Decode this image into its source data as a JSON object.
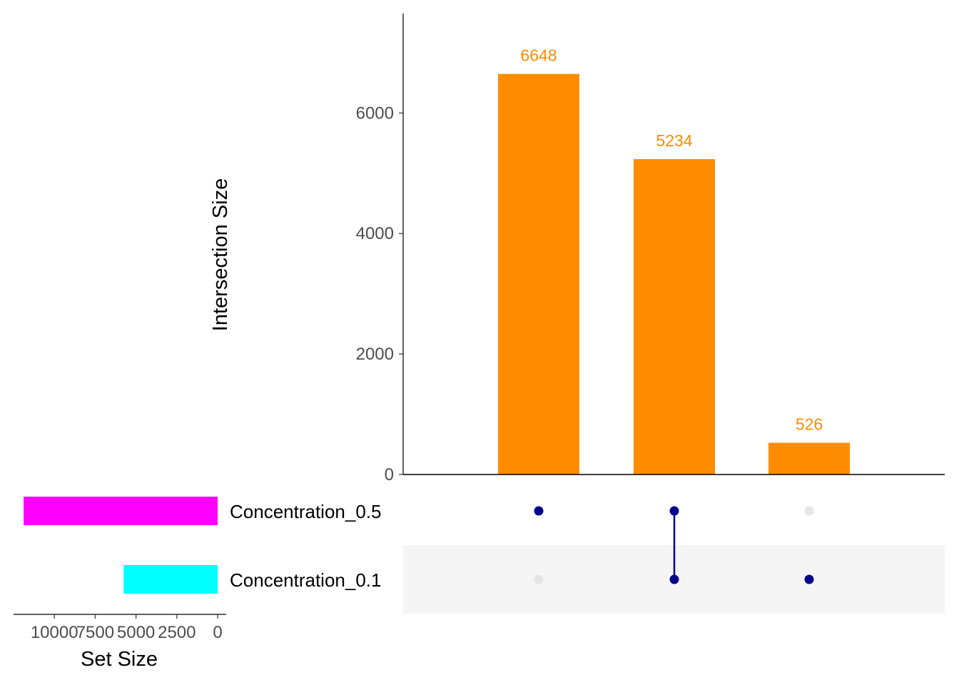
{
  "chart_data": {
    "type": "upset",
    "intersections": {
      "ylabel": "Intersection Size",
      "ylim": [
        0,
        7650
      ],
      "yticks": [
        0,
        2000,
        4000,
        6000
      ],
      "bar_color": "#FF8C00",
      "bars": [
        {
          "sets": [
            "Concentration_0.5"
          ],
          "value": 6648,
          "label": "6648"
        },
        {
          "sets": [
            "Concentration_0.5",
            "Concentration_0.1"
          ],
          "value": 5234,
          "label": "5234"
        },
        {
          "sets": [
            "Concentration_0.1"
          ],
          "value": 526,
          "label": "526"
        }
      ]
    },
    "sets": {
      "xlabel": "Set Size",
      "xlim": [
        12500,
        0
      ],
      "xticks": [
        {
          "value": 10000,
          "label": "10000"
        },
        {
          "value": 7500,
          "label": "7500"
        },
        {
          "value": 5000,
          "label": "5000"
        },
        {
          "value": 2500,
          "label": "2500"
        },
        {
          "value": 0,
          "label": "0"
        }
      ],
      "items": [
        {
          "name": "Concentration_0.5",
          "size": 11882,
          "color": "#FF00FF"
        },
        {
          "name": "Concentration_0.1",
          "size": 5760,
          "color": "#00FFFF"
        }
      ]
    },
    "matrix": {
      "active_dot_color": "#00008B",
      "inactive_dot_color": "#E5E5E5",
      "stripe_color": "#F5F5F5"
    }
  }
}
